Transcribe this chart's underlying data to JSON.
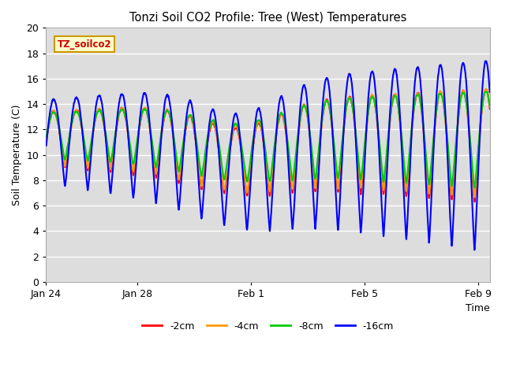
{
  "title": "Tonzi Soil CO2 Profile: Tree (West) Temperatures",
  "xlabel": "Time",
  "ylabel": "Soil Temperature (C)",
  "ylim": [
    0,
    20
  ],
  "yticks": [
    0,
    2,
    4,
    6,
    8,
    10,
    12,
    14,
    16,
    18,
    20
  ],
  "bg_color": "#dddddd",
  "fig_color": "#ffffff",
  "grid_color": "#ffffff",
  "label_box_text": "TZ_soilco2",
  "label_box_facecolor": "#ffffcc",
  "label_box_edgecolor": "#cc9900",
  "label_box_textcolor": "#cc0000",
  "series": [
    {
      "label": "-2cm",
      "color": "#ff0000",
      "lw": 1.5
    },
    {
      "label": "-4cm",
      "color": "#ff9900",
      "lw": 1.5
    },
    {
      "label": "-8cm",
      "color": "#00cc00",
      "lw": 1.5
    },
    {
      "label": "-16cm",
      "color": "#0000ff",
      "lw": 1.5
    }
  ],
  "xtick_labels": [
    "Jan 24",
    "Jan 28",
    "Feb 1",
    "Feb 5",
    "Feb 9"
  ],
  "xtick_positions": [
    0,
    4,
    9,
    14,
    19
  ],
  "total_days": 19.5
}
